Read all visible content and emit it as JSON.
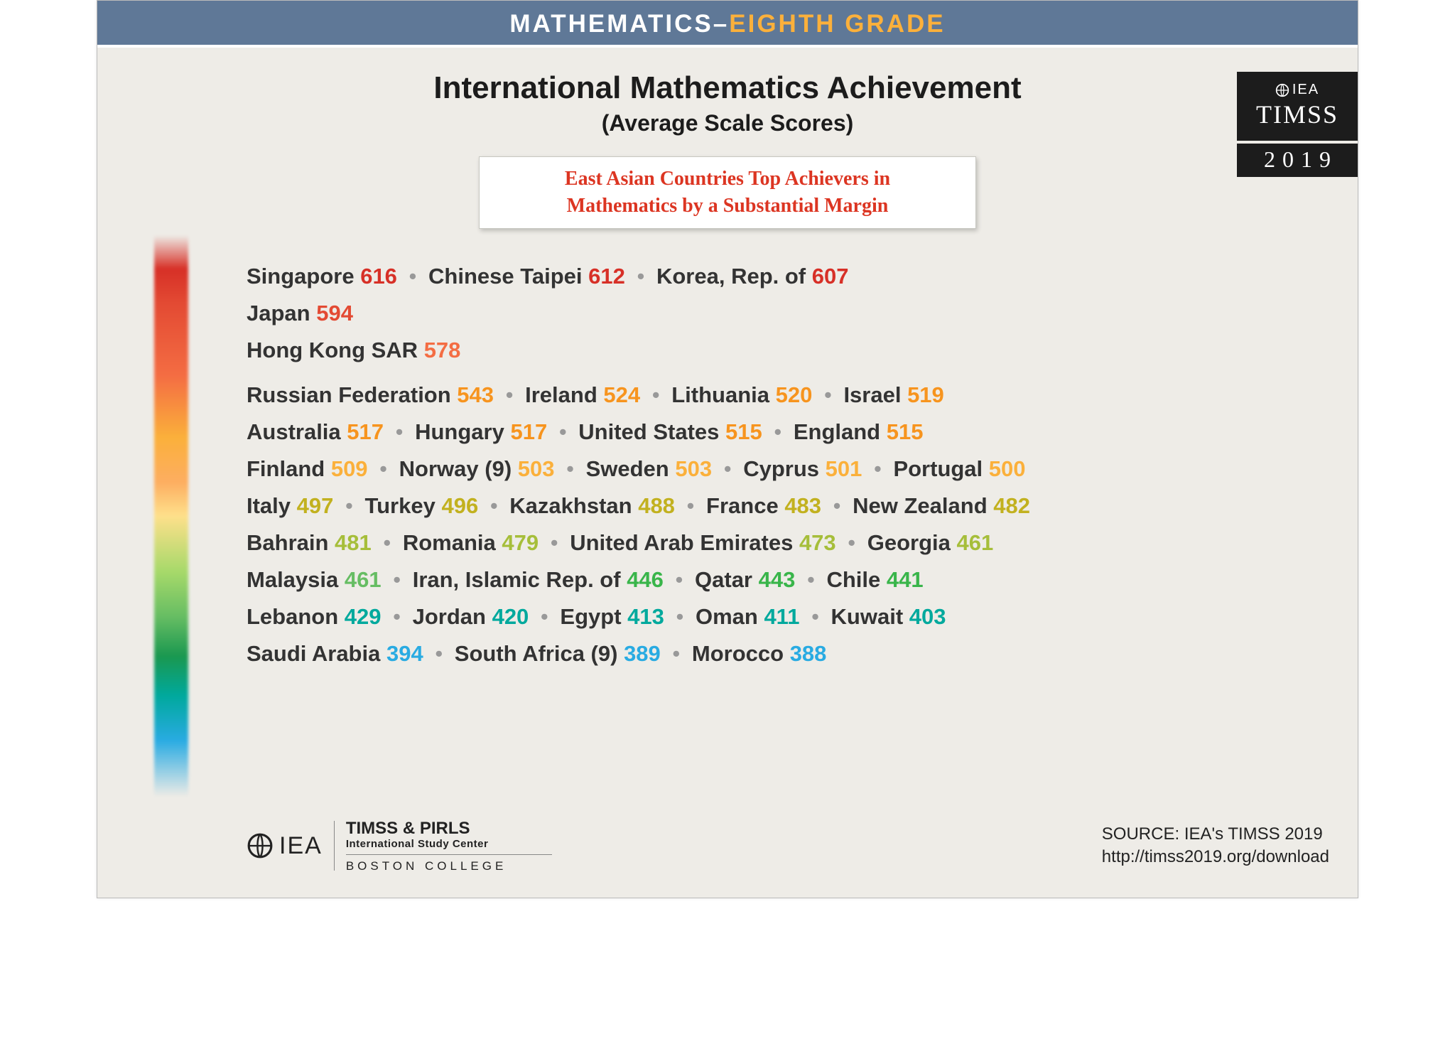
{
  "header": {
    "subject": "MATHEMATICS",
    "dash": "–",
    "grade": "EIGHTH GRADE",
    "bar_bg": "#5f7897",
    "subject_color": "#ffffff",
    "grade_color": "#fbb03b"
  },
  "badge": {
    "org": "IEA",
    "study": "TIMSS",
    "year": "2019",
    "bg": "#1c1c1c",
    "text_color": "#ffffff"
  },
  "titles": {
    "main": "International Mathematics Achievement",
    "sub": "(Average Scale Scores)"
  },
  "callout": {
    "line1": "East Asian Countries Top Achievers in",
    "line2": "Mathematics by a Substantial Margin",
    "color": "#dc3522",
    "bg": "#ffffff"
  },
  "gradient": {
    "stops": [
      "#d73027",
      "#f46d43",
      "#fbb03b",
      "#fee08b",
      "#a6d96a",
      "#1a9850",
      "#00a99d",
      "#29abe2"
    ]
  },
  "score_colors": {
    "red": "#d73027",
    "red2": "#e34a33",
    "orange": "#f46d43",
    "amber": "#f7941e",
    "gold": "#fbb03b",
    "olive": "#c2b11f",
    "yellowgreen": "#a6be3a",
    "green": "#66bd63",
    "green2": "#39b54a",
    "teal": "#00a99d",
    "cyan": "#29abe2"
  },
  "groups": [
    {
      "rows": [
        [
          {
            "name": "Singapore",
            "score": "616",
            "c": "red"
          },
          {
            "name": "Chinese Taipei",
            "score": "612",
            "c": "red"
          },
          {
            "name": "Korea, Rep. of",
            "score": "607",
            "c": "red"
          }
        ],
        [
          {
            "name": "Japan",
            "score": "594",
            "c": "red2"
          }
        ],
        [
          {
            "name": "Hong Kong SAR",
            "score": "578",
            "c": "orange"
          }
        ]
      ]
    },
    {
      "rows": [
        [
          {
            "name": "Russian Federation",
            "score": "543",
            "c": "amber"
          },
          {
            "name": "Ireland",
            "score": "524",
            "c": "amber"
          },
          {
            "name": "Lithuania",
            "score": "520",
            "c": "amber"
          },
          {
            "name": "Israel",
            "score": "519",
            "c": "amber"
          }
        ],
        [
          {
            "name": "Australia",
            "score": "517",
            "c": "amber"
          },
          {
            "name": "Hungary",
            "score": "517",
            "c": "amber"
          },
          {
            "name": "United States",
            "score": "515",
            "c": "amber"
          },
          {
            "name": "England",
            "score": "515",
            "c": "amber"
          }
        ],
        [
          {
            "name": "Finland",
            "score": "509",
            "c": "gold"
          },
          {
            "name": "Norway (9)",
            "score": "503",
            "c": "gold"
          },
          {
            "name": "Sweden",
            "score": "503",
            "c": "gold"
          },
          {
            "name": "Cyprus",
            "score": "501",
            "c": "gold"
          },
          {
            "name": "Portugal",
            "score": "500",
            "c": "gold"
          }
        ],
        [
          {
            "name": "Italy",
            "score": "497",
            "c": "olive"
          },
          {
            "name": "Turkey",
            "score": "496",
            "c": "olive"
          },
          {
            "name": "Kazakhstan",
            "score": "488",
            "c": "olive"
          },
          {
            "name": "France",
            "score": "483",
            "c": "olive"
          },
          {
            "name": "New Zealand",
            "score": "482",
            "c": "olive"
          }
        ],
        [
          {
            "name": "Bahrain",
            "score": "481",
            "c": "yellowgreen"
          },
          {
            "name": "Romania",
            "score": "479",
            "c": "yellowgreen"
          },
          {
            "name": "United Arab Emirates",
            "score": "473",
            "c": "yellowgreen"
          },
          {
            "name": "Georgia",
            "score": "461",
            "c": "yellowgreen"
          }
        ],
        [
          {
            "name": "Malaysia",
            "score": "461",
            "c": "green"
          },
          {
            "name": "Iran, Islamic Rep. of",
            "score": "446",
            "c": "green2"
          },
          {
            "name": "Qatar",
            "score": "443",
            "c": "green2"
          },
          {
            "name": "Chile",
            "score": "441",
            "c": "green2"
          }
        ],
        [
          {
            "name": "Lebanon",
            "score": "429",
            "c": "teal"
          },
          {
            "name": "Jordan",
            "score": "420",
            "c": "teal"
          },
          {
            "name": "Egypt",
            "score": "413",
            "c": "teal"
          },
          {
            "name": "Oman",
            "score": "411",
            "c": "teal"
          },
          {
            "name": "Kuwait",
            "score": "403",
            "c": "teal"
          }
        ],
        [
          {
            "name": "Saudi Arabia",
            "score": "394",
            "c": "cyan"
          },
          {
            "name": "South Africa (9)",
            "score": "389",
            "c": "cyan"
          },
          {
            "name": "Morocco",
            "score": "388",
            "c": "cyan"
          }
        ]
      ]
    }
  ],
  "footer": {
    "iea": "IEA",
    "tp_title": "TIMSS & PIRLS",
    "tp_sub": "International Study Center",
    "tp_bc": "BOSTON COLLEGE",
    "source_line1": "SOURCE: IEA's TIMSS 2019",
    "source_line2": "http://timss2019.org/download"
  },
  "separator": "•",
  "page_bg": "#eeece7",
  "text_color": "#333333"
}
